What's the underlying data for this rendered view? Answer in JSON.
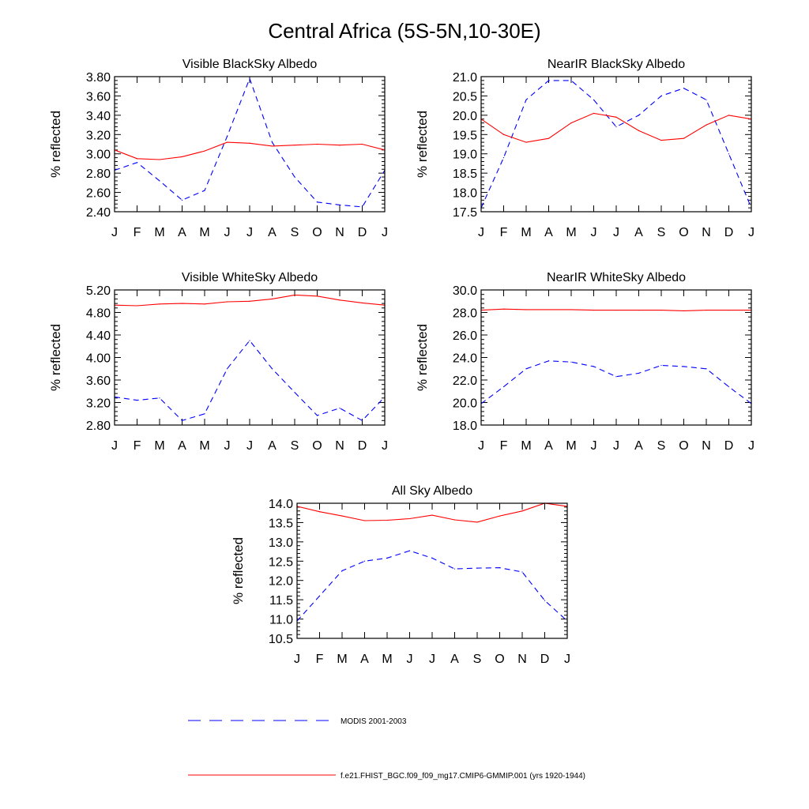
{
  "figure_title": "Central Africa (5S-5N,10-30E)",
  "legend": [
    {
      "label": "MODIS 2001-2003",
      "color": "#0000ff",
      "dash": "dashed"
    },
    {
      "label": "f.e21.FHIST_BGC.f09_f09_mg17.CMIP6-GMMIP.001 (yrs 1920-1944)",
      "color": "#ff0000",
      "dash": "solid"
    }
  ],
  "chart_data": [
    {
      "type": "line",
      "title": "Visible BlackSky Albedo",
      "ylabel": "% reflected",
      "xlabel": "",
      "categories": [
        "J",
        "F",
        "M",
        "A",
        "M",
        "J",
        "J",
        "A",
        "S",
        "O",
        "N",
        "D",
        "J"
      ],
      "ylim": [
        2.4,
        3.8
      ],
      "yticks": [
        2.4,
        2.6,
        2.8,
        3.0,
        3.2,
        3.4,
        3.6,
        3.8
      ],
      "ytick_labels": [
        "2.40",
        "2.60",
        "2.80",
        "3.00",
        "3.20",
        "3.40",
        "3.60",
        "3.80"
      ],
      "series": [
        {
          "name": "MODIS 2001-2003",
          "color": "#0000ff",
          "dash": "dashed",
          "values": [
            2.83,
            2.91,
            2.72,
            2.52,
            2.62,
            3.18,
            3.78,
            3.12,
            2.76,
            2.5,
            2.47,
            2.45,
            2.83
          ]
        },
        {
          "name": "f.e21.FHIST_BGC.f09_f09_mg17.CMIP6-GMMIP.001 (yrs 1920-1944)",
          "color": "#ff0000",
          "dash": "solid",
          "values": [
            3.04,
            2.95,
            2.94,
            2.97,
            3.03,
            3.12,
            3.11,
            3.08,
            3.09,
            3.1,
            3.09,
            3.1,
            3.04
          ]
        }
      ]
    },
    {
      "type": "line",
      "title": "NearIR BlackSky Albedo",
      "ylabel": "% reflected",
      "xlabel": "",
      "categories": [
        "J",
        "F",
        "M",
        "A",
        "M",
        "J",
        "J",
        "A",
        "S",
        "O",
        "N",
        "D",
        "J"
      ],
      "ylim": [
        17.5,
        21.0
      ],
      "yticks": [
        17.5,
        18.0,
        18.5,
        19.0,
        19.5,
        20.0,
        20.5,
        21.0
      ],
      "ytick_labels": [
        "17.5",
        "18.0",
        "18.5",
        "19.0",
        "19.5",
        "20.0",
        "20.5",
        "21.0"
      ],
      "series": [
        {
          "name": "MODIS 2001-2003",
          "color": "#0000ff",
          "dash": "dashed",
          "values": [
            17.6,
            18.9,
            20.4,
            20.9,
            20.9,
            20.4,
            19.7,
            20.0,
            20.5,
            20.7,
            20.4,
            19.0,
            17.6
          ]
        },
        {
          "name": "f.e21.FHIST_BGC.f09_f09_mg17.CMIP6-GMMIP.001 (yrs 1920-1944)",
          "color": "#ff0000",
          "dash": "solid",
          "values": [
            19.9,
            19.5,
            19.3,
            19.4,
            19.8,
            20.05,
            19.95,
            19.6,
            19.35,
            19.4,
            19.75,
            20.0,
            19.9
          ]
        }
      ]
    },
    {
      "type": "line",
      "title": "Visible WhiteSky Albedo",
      "ylabel": "% reflected",
      "xlabel": "",
      "categories": [
        "J",
        "F",
        "M",
        "A",
        "M",
        "J",
        "J",
        "A",
        "S",
        "O",
        "N",
        "D",
        "J"
      ],
      "ylim": [
        2.8,
        5.2
      ],
      "yticks": [
        2.8,
        3.2,
        3.6,
        4.0,
        4.4,
        4.8,
        5.2
      ],
      "ytick_labels": [
        "2.80",
        "3.20",
        "3.60",
        "4.00",
        "4.40",
        "4.80",
        "5.20"
      ],
      "series": [
        {
          "name": "MODIS 2001-2003",
          "color": "#0000ff",
          "dash": "dashed",
          "values": [
            3.3,
            3.24,
            3.28,
            2.88,
            3.0,
            3.8,
            4.3,
            3.8,
            3.38,
            2.97,
            3.1,
            2.88,
            3.3
          ]
        },
        {
          "name": "f.e21.FHIST_BGC.f09_f09_mg17.CMIP6-GMMIP.001 (yrs 1920-1944)",
          "color": "#ff0000",
          "dash": "solid",
          "values": [
            4.93,
            4.92,
            4.95,
            4.96,
            4.95,
            4.99,
            5.0,
            5.04,
            5.11,
            5.09,
            5.02,
            4.97,
            4.93
          ]
        }
      ]
    },
    {
      "type": "line",
      "title": "NearIR WhiteSky Albedo",
      "ylabel": "% reflected",
      "xlabel": "",
      "categories": [
        "J",
        "F",
        "M",
        "A",
        "M",
        "J",
        "J",
        "A",
        "S",
        "O",
        "N",
        "D",
        "J"
      ],
      "ylim": [
        18.0,
        30.0
      ],
      "yticks": [
        18.0,
        20.0,
        22.0,
        24.0,
        26.0,
        28.0,
        30.0
      ],
      "ytick_labels": [
        "18.0",
        "20.0",
        "22.0",
        "24.0",
        "26.0",
        "28.0",
        "30.0"
      ],
      "series": [
        {
          "name": "MODIS 2001-2003",
          "color": "#0000ff",
          "dash": "dashed",
          "values": [
            19.9,
            21.4,
            23.0,
            23.7,
            23.6,
            23.2,
            22.3,
            22.6,
            23.3,
            23.2,
            23.0,
            21.4,
            19.9
          ]
        },
        {
          "name": "f.e21.FHIST_BGC.f09_f09_mg17.CMIP6-GMMIP.001 (yrs 1920-1944)",
          "color": "#ff0000",
          "dash": "solid",
          "values": [
            28.2,
            28.3,
            28.25,
            28.25,
            28.25,
            28.2,
            28.2,
            28.2,
            28.2,
            28.15,
            28.2,
            28.2,
            28.2
          ]
        }
      ]
    },
    {
      "type": "line",
      "title": "All Sky Albedo",
      "ylabel": "% reflected",
      "xlabel": "",
      "categories": [
        "J",
        "F",
        "M",
        "A",
        "M",
        "J",
        "J",
        "A",
        "S",
        "O",
        "N",
        "D",
        "J"
      ],
      "ylim": [
        10.5,
        14.0
      ],
      "yticks": [
        10.5,
        11.0,
        11.5,
        12.0,
        12.5,
        13.0,
        13.5,
        14.0
      ],
      "ytick_labels": [
        "10.5",
        "11.0",
        "11.5",
        "12.0",
        "12.5",
        "13.0",
        "13.5",
        "14.0"
      ],
      "series": [
        {
          "name": "MODIS 2001-2003",
          "color": "#0000ff",
          "dash": "dashed",
          "values": [
            10.95,
            11.6,
            12.25,
            12.5,
            12.58,
            12.77,
            12.58,
            12.3,
            12.32,
            12.33,
            12.22,
            11.48,
            10.95
          ]
        },
        {
          "name": "f.e21.FHIST_BGC.f09_f09_mg17.CMIP6-GMMIP.001 (yrs 1920-1944)",
          "color": "#ff0000",
          "dash": "solid",
          "values": [
            13.92,
            13.78,
            13.67,
            13.55,
            13.56,
            13.6,
            13.69,
            13.57,
            13.51,
            13.67,
            13.8,
            14.0,
            13.92
          ]
        }
      ]
    }
  ]
}
